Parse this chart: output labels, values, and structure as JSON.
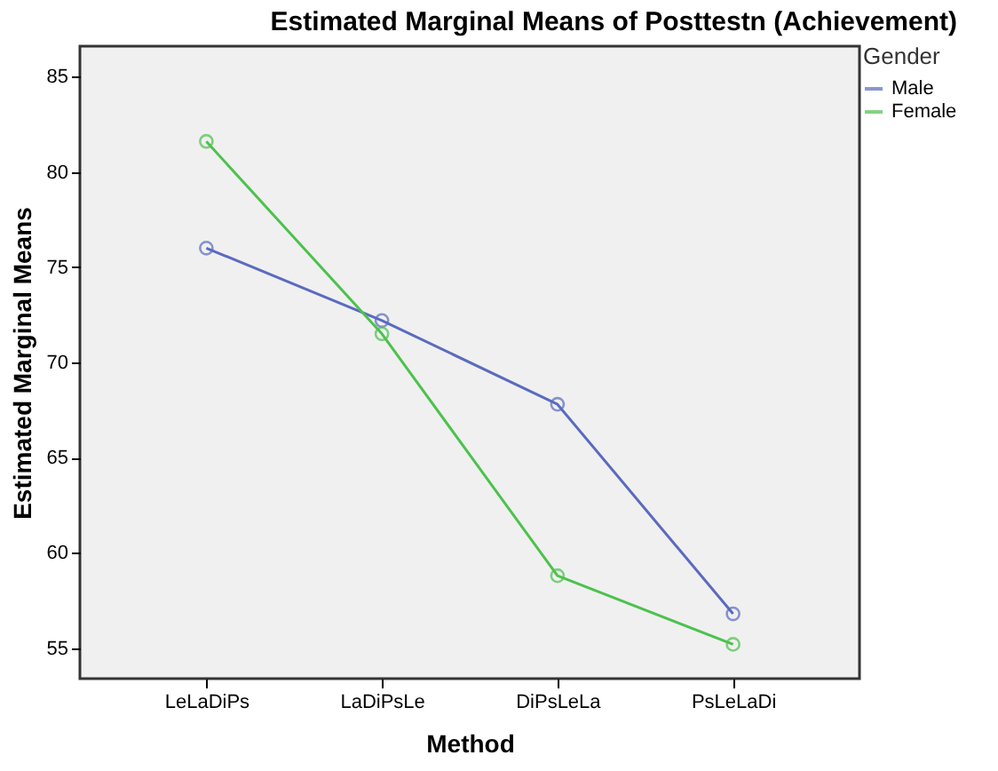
{
  "chart_data": {
    "type": "line",
    "title": "Estimated Marginal Means of Posttestn (Achievement)",
    "xlabel": "Method",
    "ylabel": "Estimated Marginal Means",
    "legend_title": "Gender",
    "categories": [
      "LeLaDiPs",
      "LaDiPsLe",
      "DiPsLeLa",
      "PsLeLaDi"
    ],
    "series": [
      {
        "name": "Male",
        "color": "#5a6bbf",
        "values": [
          76.0,
          72.2,
          67.8,
          56.8
        ]
      },
      {
        "name": "Female",
        "color": "#4cc24c",
        "values": [
          81.6,
          71.5,
          58.8,
          55.2
        ]
      }
    ],
    "ylim": [
      53.4,
      86.6
    ],
    "yticks": [
      55,
      60,
      65,
      70,
      75,
      80,
      85
    ],
    "grid": false,
    "legend": "top right",
    "marker": "circle",
    "line_style": "solid"
  }
}
